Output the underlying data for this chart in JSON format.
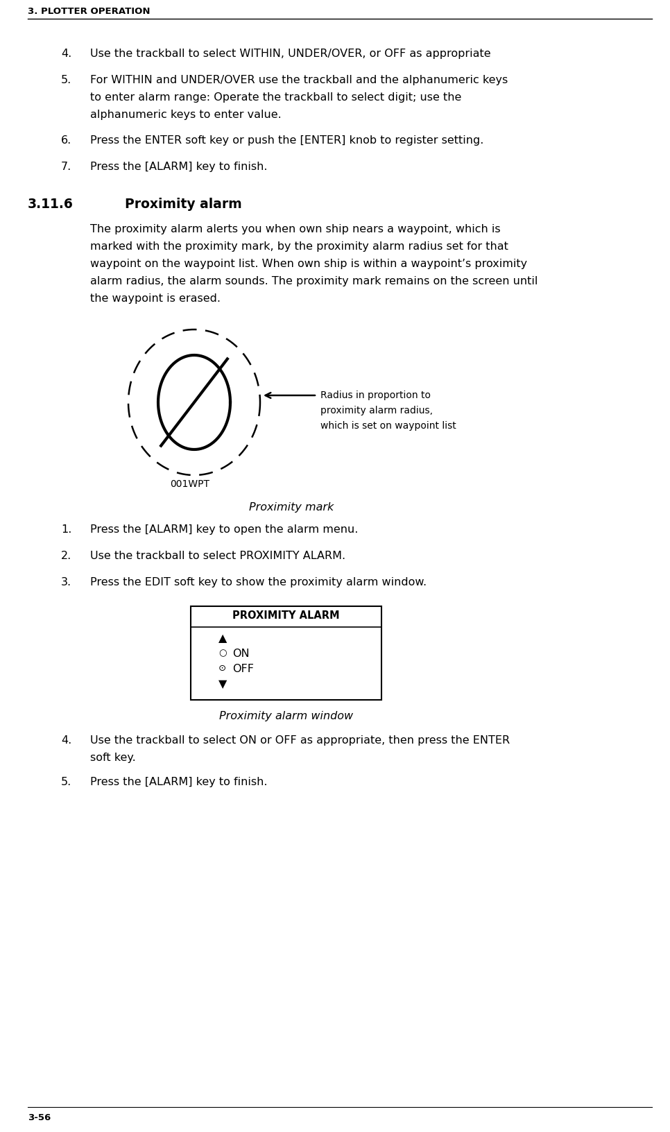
{
  "bg_color": "#ffffff",
  "header_text": "3. PLOTTER OPERATION",
  "footer_text": "3-56",
  "section_number": "3.11.6",
  "section_title": "Proximity alarm",
  "list_items_top": [
    {
      "num": "4.",
      "text": "Use the trackball to select WITHIN, UNDER/OVER, or OFF as appropriate"
    },
    {
      "num": "5.",
      "text": "For WITHIN and UNDER/OVER use the trackball and the alphanumeric keys\nto enter alarm range: Operate the trackball to select digit; use the\nalphanumeric keys to enter value."
    },
    {
      "num": "6.",
      "text": "Press the ENTER soft key or push the [ENTER] knob to register setting."
    },
    {
      "num": "7.",
      "text": "Press the [ALARM] key to finish."
    }
  ],
  "paragraph_lines": [
    "The proximity alarm alerts you when own ship nears a waypoint, which is",
    "marked with the proximity mark, by the proximity alarm radius set for that",
    "waypoint on the waypoint list. When own ship is within a waypoint’s proximity",
    "alarm radius, the alarm sounds. The proximity mark remains on the screen until",
    "the waypoint is erased."
  ],
  "diagram_caption": "Proximity mark",
  "diagram_label_lines": [
    "Radius in proportion to",
    "proximity alarm radius,",
    "which is set on waypoint list"
  ],
  "wpt_label": "001WPT",
  "list_items_bottom": [
    {
      "num": "1.",
      "text": "Press the [ALARM] key to open the alarm menu."
    },
    {
      "num": "2.",
      "text": "Use the trackball to select PROXIMITY ALARM."
    },
    {
      "num": "3.",
      "text": "Press the EDIT soft key to show the proximity alarm window."
    }
  ],
  "list_items_final": [
    {
      "num": "4.",
      "text": "Use the trackball to select ON or OFF as appropriate, then press the ENTER\nsoft key."
    },
    {
      "num": "5.",
      "text": "Press the [ALARM] key to finish."
    }
  ],
  "box_title": "PROXIMITY ALARM",
  "box_caption": "Proximity alarm window"
}
